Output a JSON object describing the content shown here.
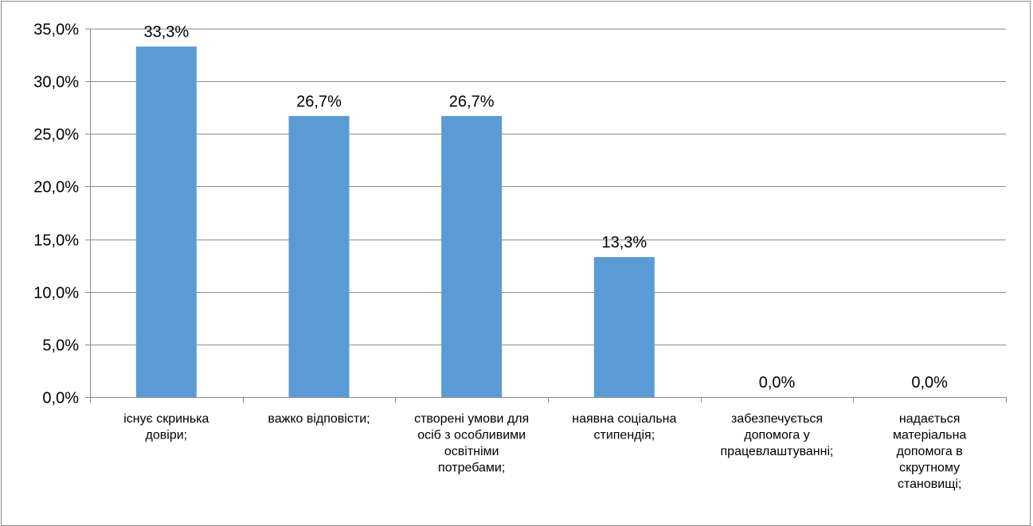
{
  "chart_data": {
    "type": "bar",
    "categories": [
      [
        "існує скринька",
        "довіри;"
      ],
      [
        "важко відповісти;"
      ],
      [
        "створені умови для",
        "осіб з особливими",
        "освітніми",
        "потребами;"
      ],
      [
        "наявна соціальна",
        "стипендія;"
      ],
      [
        "забезпечується",
        "допомога у",
        "працевлаштуванні;"
      ],
      [
        "надається",
        "матеріальна",
        "допомога в",
        "скрутному",
        "становищі;"
      ]
    ],
    "values": [
      33.3,
      26.7,
      26.7,
      13.3,
      0.0,
      0.0
    ],
    "data_labels": [
      "33,3%",
      "26,7%",
      "26,7%",
      "13,3%",
      "0,0%",
      "0,0%"
    ],
    "yticks": [
      0,
      5,
      10,
      15,
      20,
      25,
      30,
      35
    ],
    "ytick_labels": [
      "0,0%",
      "5,0%",
      "10,0%",
      "15,0%",
      "20,0%",
      "25,0%",
      "30,0%",
      "35,0%"
    ],
    "ylim": [
      0,
      35
    ],
    "grid": true,
    "bar_color": "#5b9bd5",
    "title": "",
    "xlabel": "",
    "ylabel": ""
  }
}
